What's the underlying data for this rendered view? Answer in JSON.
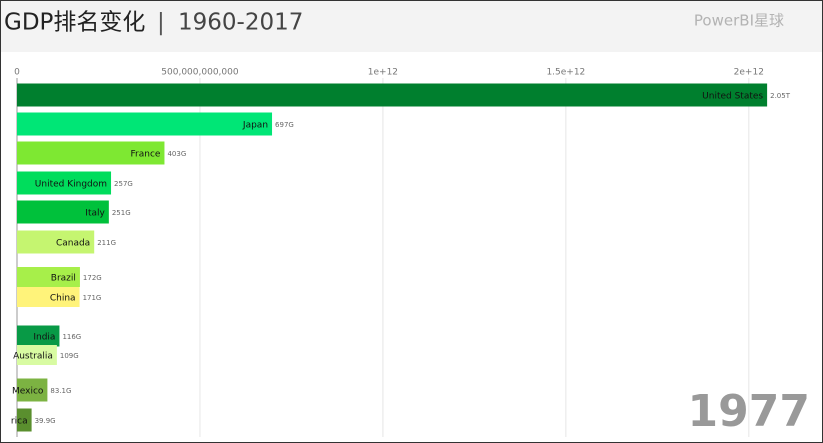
{
  "chart_data": {
    "type": "bar",
    "orientation": "horizontal",
    "title": "GDP排名变化",
    "separator": "|",
    "subtitle": "1960-2017",
    "brand": "PowerBI星球",
    "year_label": "1977",
    "categories": [
      "United States",
      "Japan",
      "France",
      "United Kingdom",
      "Italy",
      "Canada",
      "Brazil",
      "China",
      "India",
      "Australia",
      "Mexico",
      "rica"
    ],
    "values": [
      2050000000000,
      697000000000,
      403000000000,
      257000000000,
      251000000000,
      211000000000,
      172000000000,
      171000000000,
      116000000000,
      109000000000,
      83100000000,
      39900000000
    ],
    "value_labels": [
      "2.05T",
      "697G",
      "403G",
      "257G",
      "251G",
      "211G",
      "172G",
      "171G",
      "116G",
      "109G",
      "83.1G",
      "39.9G"
    ],
    "colors": [
      "#007f2e",
      "#00e676",
      "#7ee832",
      "#00dd5c",
      "#00c13b",
      "#c5f570",
      "#a7ef4a",
      "#fff37a",
      "#089a46",
      "#d8fba2",
      "#7cb342",
      "#5a8f2e"
    ],
    "xlim": [
      0,
      2200000000000
    ],
    "xticks": [
      0,
      {
        "value": 500000000000,
        "label": "500,000,000,000"
      },
      {
        "value": 1000000000000,
        "label": "1e+12"
      },
      {
        "value": 1500000000000,
        "label": "1.5e+12"
      },
      {
        "value": 2000000000000,
        "label": "2e+12"
      }
    ],
    "grid": true
  }
}
